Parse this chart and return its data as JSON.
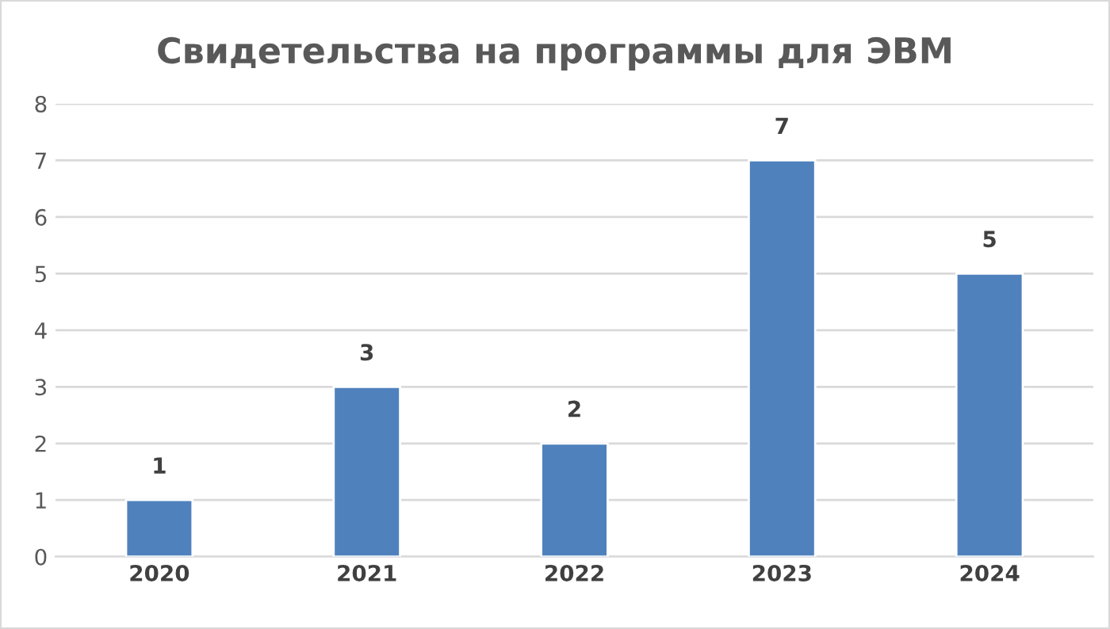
{
  "chart_data": {
    "type": "bar",
    "title": "Свидетельства на программы для ЭВМ",
    "categories": [
      "2020",
      "2021",
      "2022",
      "2023",
      "2024"
    ],
    "values": [
      1,
      3,
      2,
      7,
      5
    ],
    "color": "#4f81bd",
    "ylim": [
      0,
      8
    ],
    "yticks": [
      0,
      1,
      2,
      3,
      4,
      5,
      6,
      7,
      8
    ],
    "grid": "y",
    "data_labels": true
  }
}
